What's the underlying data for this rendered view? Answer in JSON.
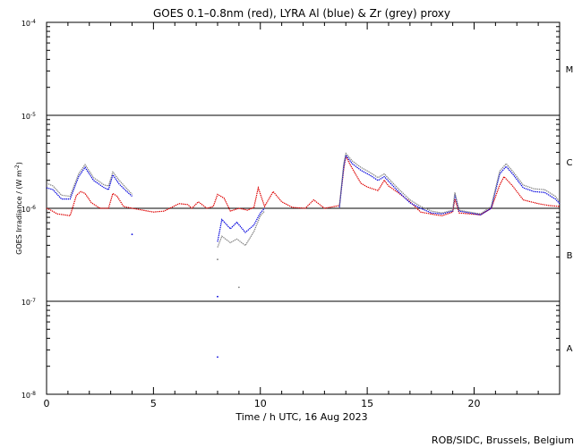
{
  "chart_data": {
    "type": "line",
    "title": "GOES 0.1–0.8nm (red), LYRA Al (blue) & Zr (grey) proxy",
    "xlabel": "Time / h UTC, 16 Aug 2023",
    "ylabel": "GOES Irradiance / (W m",
    "ylabel_sup": "-2",
    "ylabel_close": ")",
    "xlim": [
      0,
      24
    ],
    "ylim_log10": [
      -8,
      -4
    ],
    "x_ticks": [
      {
        "value": 0,
        "label": "0"
      },
      {
        "value": 5,
        "label": "5"
      },
      {
        "value": 10,
        "label": "10"
      },
      {
        "value": 15,
        "label": "15"
      },
      {
        "value": 20,
        "label": "20"
      }
    ],
    "y_ticks": [
      {
        "exp": -4,
        "label": "10",
        "sup": "-4"
      },
      {
        "exp": -5,
        "label": "10",
        "sup": "-5"
      },
      {
        "exp": -6,
        "label": "10",
        "sup": "-6"
      },
      {
        "exp": -7,
        "label": "10",
        "sup": "-7"
      },
      {
        "exp": -8,
        "label": "10",
        "sup": "-8"
      }
    ],
    "class_lines_log10": [
      -5,
      -6,
      -7
    ],
    "flare_classes": [
      {
        "label": "M",
        "log10": -4.5
      },
      {
        "label": "C",
        "log10": -5.5
      },
      {
        "label": "B",
        "log10": -6.5
      },
      {
        "label": "A",
        "log10": -7.5
      }
    ],
    "series": [
      {
        "name": "GOES 0.1-0.8nm",
        "color": "#dd0000",
        "points": [
          [
            0,
            -6.0
          ],
          [
            0.2,
            -6.02
          ],
          [
            0.5,
            -6.06
          ],
          [
            1.1,
            -6.08
          ],
          [
            1.4,
            -5.86
          ],
          [
            1.6,
            -5.82
          ],
          [
            1.8,
            -5.84
          ],
          [
            2.1,
            -5.94
          ],
          [
            2.5,
            -6.0
          ],
          [
            2.9,
            -6.0
          ],
          [
            3.1,
            -5.84
          ],
          [
            3.3,
            -5.87
          ],
          [
            3.6,
            -5.98
          ],
          [
            4.0,
            -6.0
          ],
          [
            5.0,
            -6.04
          ],
          [
            5.5,
            -6.03
          ],
          [
            6.2,
            -5.95
          ],
          [
            6.6,
            -5.96
          ],
          [
            6.8,
            -6.0
          ],
          [
            7.1,
            -5.93
          ],
          [
            7.5,
            -6.0
          ],
          [
            7.8,
            -5.98
          ],
          [
            8.0,
            -5.85
          ],
          [
            8.3,
            -5.89
          ],
          [
            8.6,
            -6.03
          ],
          [
            9.0,
            -6.0
          ],
          [
            9.4,
            -6.02
          ],
          [
            9.7,
            -5.99
          ],
          [
            9.9,
            -5.78
          ],
          [
            10.2,
            -5.98
          ],
          [
            10.6,
            -5.82
          ],
          [
            11.0,
            -5.93
          ],
          [
            11.5,
            -5.99
          ],
          [
            12.1,
            -6.0
          ],
          [
            12.5,
            -5.91
          ],
          [
            13.0,
            -6.0
          ],
          [
            13.7,
            -5.97
          ],
          [
            13.9,
            -5.58
          ],
          [
            14.0,
            -5.44
          ],
          [
            14.2,
            -5.53
          ],
          [
            14.7,
            -5.73
          ],
          [
            15.0,
            -5.77
          ],
          [
            15.5,
            -5.81
          ],
          [
            15.8,
            -5.7
          ],
          [
            16.0,
            -5.76
          ],
          [
            16.5,
            -5.84
          ],
          [
            17.0,
            -5.93
          ],
          [
            17.5,
            -6.04
          ],
          [
            18.2,
            -6.07
          ],
          [
            18.5,
            -6.08
          ],
          [
            19.0,
            -6.04
          ],
          [
            19.1,
            -5.9
          ],
          [
            19.3,
            -6.05
          ],
          [
            19.8,
            -6.06
          ],
          [
            20.3,
            -6.07
          ],
          [
            20.8,
            -6.0
          ],
          [
            21.2,
            -5.75
          ],
          [
            21.4,
            -5.66
          ],
          [
            21.8,
            -5.76
          ],
          [
            22.3,
            -5.91
          ],
          [
            23.0,
            -5.95
          ],
          [
            23.5,
            -5.97
          ],
          [
            24.0,
            -5.98
          ]
        ]
      },
      {
        "name": "LYRA Al",
        "color": "#0000dd",
        "points": [
          [
            0,
            -5.78
          ],
          [
            0.3,
            -5.8
          ],
          [
            0.7,
            -5.9
          ],
          [
            1.1,
            -5.9
          ],
          [
            1.5,
            -5.66
          ],
          [
            1.8,
            -5.56
          ],
          [
            2.2,
            -5.7
          ],
          [
            2.7,
            -5.78
          ],
          [
            2.9,
            -5.8
          ],
          [
            3.1,
            -5.64
          ],
          [
            3.4,
            -5.74
          ],
          [
            3.8,
            -5.83
          ],
          [
            4.0,
            -5.87
          ],
          null,
          [
            8.0,
            -6.36
          ],
          [
            8.2,
            -6.12
          ],
          [
            8.6,
            -6.22
          ],
          [
            8.9,
            -6.15
          ],
          [
            9.3,
            -6.26
          ],
          [
            9.7,
            -6.18
          ],
          [
            10.0,
            -6.05
          ],
          [
            10.2,
            -6.0
          ],
          null,
          [
            13.7,
            -5.99
          ],
          [
            13.9,
            -5.55
          ],
          [
            14.0,
            -5.43
          ],
          [
            14.3,
            -5.52
          ],
          [
            14.7,
            -5.59
          ],
          [
            15.1,
            -5.64
          ],
          [
            15.5,
            -5.7
          ],
          [
            15.8,
            -5.66
          ],
          [
            16.0,
            -5.71
          ],
          [
            16.5,
            -5.83
          ],
          [
            17.0,
            -5.94
          ],
          [
            17.5,
            -6.0
          ],
          [
            18.0,
            -6.05
          ],
          [
            18.5,
            -6.06
          ],
          [
            19.0,
            -6.03
          ],
          [
            19.1,
            -5.85
          ],
          [
            19.3,
            -6.03
          ],
          [
            19.8,
            -6.05
          ],
          [
            20.3,
            -6.07
          ],
          [
            20.8,
            -6.0
          ],
          [
            21.2,
            -5.63
          ],
          [
            21.5,
            -5.55
          ],
          [
            21.8,
            -5.63
          ],
          [
            22.3,
            -5.78
          ],
          [
            22.8,
            -5.82
          ],
          [
            23.3,
            -5.83
          ],
          [
            23.8,
            -5.9
          ],
          [
            24.0,
            -5.95
          ]
        ]
      },
      {
        "name": "LYRA Zr",
        "color": "#808080",
        "points": [
          [
            0,
            -5.73
          ],
          [
            0.3,
            -5.76
          ],
          [
            0.7,
            -5.86
          ],
          [
            1.1,
            -5.87
          ],
          [
            1.5,
            -5.63
          ],
          [
            1.8,
            -5.53
          ],
          [
            2.2,
            -5.67
          ],
          [
            2.7,
            -5.75
          ],
          [
            2.9,
            -5.76
          ],
          [
            3.1,
            -5.61
          ],
          [
            3.4,
            -5.7
          ],
          [
            3.8,
            -5.8
          ],
          [
            4.0,
            -5.85
          ],
          null,
          [
            8.0,
            -6.42
          ],
          [
            8.2,
            -6.3
          ],
          [
            8.6,
            -6.37
          ],
          [
            8.9,
            -6.33
          ],
          [
            9.3,
            -6.4
          ],
          [
            9.7,
            -6.25
          ],
          [
            10.0,
            -6.08
          ],
          [
            10.2,
            -6.03
          ],
          null,
          [
            13.7,
            -5.98
          ],
          [
            13.9,
            -5.52
          ],
          [
            14.0,
            -5.41
          ],
          [
            14.3,
            -5.49
          ],
          [
            14.7,
            -5.56
          ],
          [
            15.1,
            -5.61
          ],
          [
            15.5,
            -5.67
          ],
          [
            15.8,
            -5.63
          ],
          [
            16.0,
            -5.68
          ],
          [
            16.5,
            -5.8
          ],
          [
            17.0,
            -5.91
          ],
          [
            17.5,
            -5.98
          ],
          [
            18.0,
            -6.03
          ],
          [
            18.5,
            -6.05
          ],
          [
            19.0,
            -6.02
          ],
          [
            19.1,
            -5.83
          ],
          [
            19.3,
            -6.02
          ],
          [
            19.8,
            -6.04
          ],
          [
            20.3,
            -6.06
          ],
          [
            20.8,
            -5.98
          ],
          [
            21.2,
            -5.6
          ],
          [
            21.5,
            -5.52
          ],
          [
            21.8,
            -5.6
          ],
          [
            22.3,
            -5.75
          ],
          [
            22.8,
            -5.79
          ],
          [
            23.3,
            -5.8
          ],
          [
            23.8,
            -5.87
          ],
          [
            24.0,
            -5.93
          ]
        ]
      }
    ],
    "outlier_points": [
      {
        "color": "#0000dd",
        "x": 8.0,
        "log10": -6.95
      },
      {
        "color": "#0000dd",
        "x": 8.0,
        "log10": -7.6
      },
      {
        "color": "#0000dd",
        "x": 4.0,
        "log10": -6.28
      },
      {
        "color": "#808080",
        "x": 9.0,
        "log10": -6.85
      },
      {
        "color": "#808080",
        "x": 8.0,
        "log10": -6.55
      }
    ]
  },
  "footer": {
    "credit": "ROB/SIDC, Brussels, Belgium"
  }
}
